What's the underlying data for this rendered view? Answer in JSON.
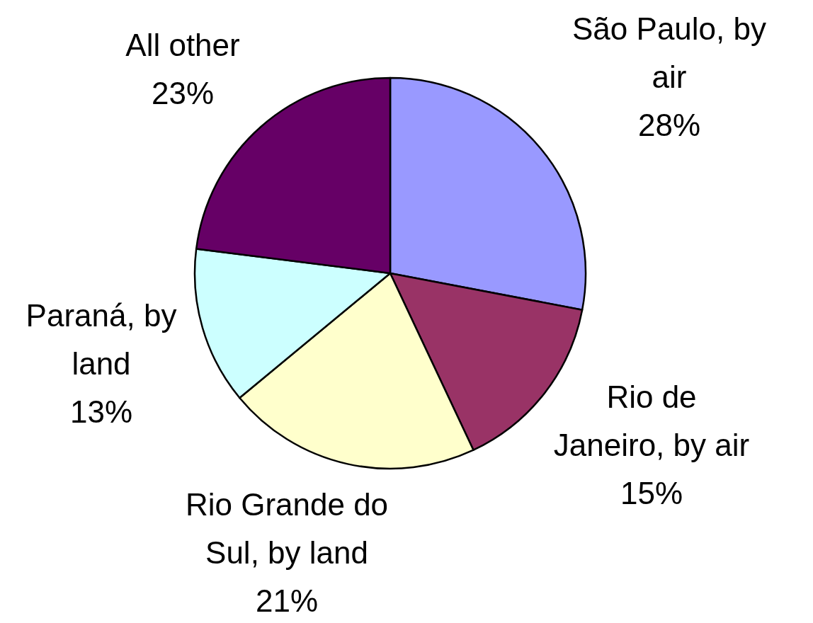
{
  "chart_data": {
    "type": "pie",
    "categories": [
      "São Paulo, by air",
      "Rio de Janeiro, by air",
      "Rio Grande do Sul, by land",
      "Paraná, by land",
      "All other"
    ],
    "values": [
      28,
      15,
      21,
      13,
      23
    ],
    "value_labels": [
      "28%",
      "15%",
      "21%",
      "13%",
      "23%"
    ],
    "colors": [
      "#9999ff",
      "#993366",
      "#ffffcc",
      "#ccffff",
      "#660066"
    ]
  }
}
